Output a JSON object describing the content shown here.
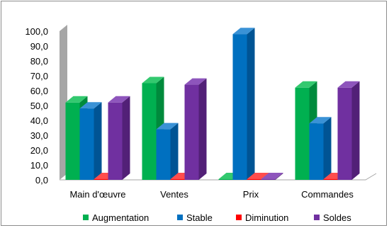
{
  "chart_data": {
    "type": "bar",
    "categories": [
      "Main d'œuvre",
      "Ventes",
      "Prix",
      "Commandes"
    ],
    "series": [
      {
        "name": "Augmentation",
        "values": [
          52,
          65,
          0.5,
          62
        ],
        "color": "#00b050",
        "side": "#008a3c",
        "top": "#33c96f"
      },
      {
        "name": "Stable",
        "values": [
          48,
          34,
          98,
          38
        ],
        "color": "#0070c0",
        "side": "#005494",
        "top": "#3a92d6"
      },
      {
        "name": "Diminution",
        "values": [
          0.5,
          0.5,
          0.5,
          0.5
        ],
        "color": "#ff0000",
        "side": "#c00000",
        "top": "#ff4d4d"
      },
      {
        "name": "Soldes",
        "values": [
          52,
          64,
          0.5,
          62
        ],
        "color": "#7030a0",
        "side": "#522077",
        "top": "#8e55bc"
      }
    ],
    "yticks": [
      "0,0",
      "10,0",
      "20,0",
      "30,0",
      "40,0",
      "50,0",
      "60,0",
      "70,0",
      "80,0",
      "90,0",
      "100,0"
    ],
    "ylim": [
      0,
      100
    ],
    "grid": false,
    "legend_position": "bottom",
    "colors": {
      "wall": "#a6a6a6",
      "floor_line": "#a6a6a6"
    }
  }
}
